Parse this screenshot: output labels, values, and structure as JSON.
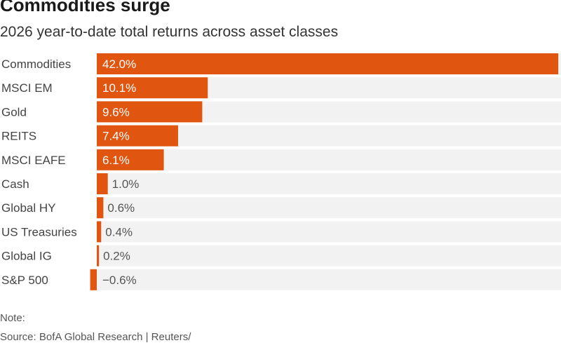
{
  "header": {
    "title": "Commodities surge",
    "subtitle": "2026 year-to-date total returns across asset classes"
  },
  "footer": {
    "note": "Note:",
    "source": "Source: BofA Global Research | Reuters/ ...",
    "source_visible_fragment": "Source: BofA Global Research | Reuters/"
  },
  "colors": {
    "bar": "#e0550f",
    "row_bg": "#f2f2f2",
    "label_on_bar": "#ffffff",
    "label_off_bar": "#555555"
  },
  "chart_data": {
    "type": "bar",
    "orientation": "horizontal",
    "title": "Commodities surge",
    "subtitle": "2026 year-to-date total returns across asset classes",
    "categories": [
      "Commodities",
      "MSCI EM",
      "Gold",
      "REITS",
      "MSCI EAFE",
      "Cash",
      "Global HY",
      "US Treasuries",
      "Global IG",
      "S&P 500"
    ],
    "values": [
      42.0,
      10.1,
      9.6,
      7.4,
      6.1,
      1.0,
      0.6,
      0.4,
      0.2,
      -0.6
    ],
    "value_labels": [
      "42.0%",
      "10.1%",
      "9.6%",
      "7.4%",
      "6.1%",
      "1.0%",
      "0.6%",
      "0.4%",
      "0.2%",
      "−0.6%"
    ],
    "unit": "%",
    "grid": false,
    "legend": "none"
  }
}
